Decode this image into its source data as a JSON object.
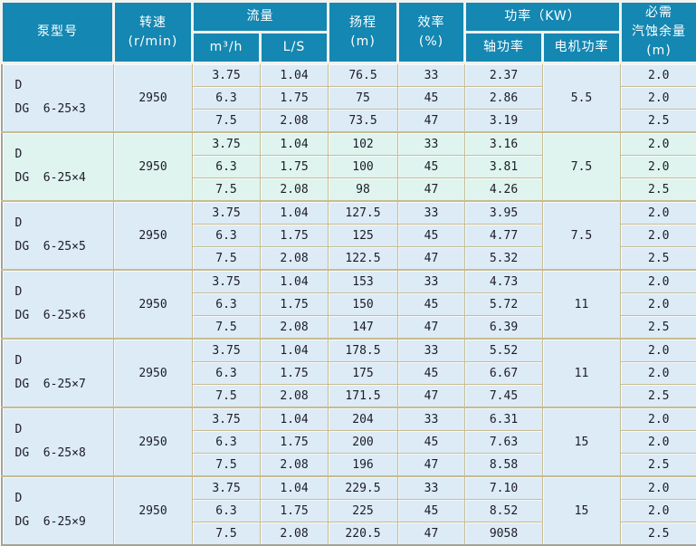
{
  "header": {
    "pump_model": "泵型号",
    "speed_l1": "转速",
    "speed_l2": "(r/min)",
    "flow": "流量",
    "flow_m3h": "m³/h",
    "flow_ls": "L/S",
    "head_l1": "扬程",
    "head_l2": "(m)",
    "eff_l1": "效率",
    "eff_l2": "(%)",
    "power": "功率（KW）",
    "power_shaft": "轴功率",
    "power_motor": "电机功率",
    "npsh_l1": "必需",
    "npsh_l2": "汽蚀余量",
    "npsh_l3": "(m)"
  },
  "colors": {
    "header_bg": "#1487b2",
    "row_bg": "#dcebf5",
    "row_bg_highlight": "#dff4ee",
    "border": "#c6bc93",
    "header_text": "#ffffff",
    "body_text": "#1c1c28"
  },
  "groups": [
    {
      "model_line1": "D",
      "model_line2": "DG  6-25×3",
      "speed": "2950",
      "motor_power": "5.5",
      "highlight": false,
      "rows": [
        {
          "m3h": "3.75",
          "ls": "1.04",
          "head": "76.5",
          "eff": "33",
          "shaft": "2.37",
          "npsh": "2.0"
        },
        {
          "m3h": "6.3",
          "ls": "1.75",
          "head": "75",
          "eff": "45",
          "shaft": "2.86",
          "npsh": "2.0"
        },
        {
          "m3h": "7.5",
          "ls": "2.08",
          "head": "73.5",
          "eff": "47",
          "shaft": "3.19",
          "npsh": "2.5"
        }
      ]
    },
    {
      "model_line1": "D",
      "model_line2": "DG  6-25×4",
      "speed": "2950",
      "motor_power": "7.5",
      "highlight": true,
      "rows": [
        {
          "m3h": "3.75",
          "ls": "1.04",
          "head": "102",
          "eff": "33",
          "shaft": "3.16",
          "npsh": "2.0"
        },
        {
          "m3h": "6.3",
          "ls": "1.75",
          "head": "100",
          "eff": "45",
          "shaft": "3.81",
          "npsh": "2.0"
        },
        {
          "m3h": "7.5",
          "ls": "2.08",
          "head": "98",
          "eff": "47",
          "shaft": "4.26",
          "npsh": "2.5"
        }
      ]
    },
    {
      "model_line1": "D",
      "model_line2": "DG  6-25×5",
      "speed": "2950",
      "motor_power": "7.5",
      "highlight": false,
      "rows": [
        {
          "m3h": "3.75",
          "ls": "1.04",
          "head": "127.5",
          "eff": "33",
          "shaft": "3.95",
          "npsh": "2.0"
        },
        {
          "m3h": "6.3",
          "ls": "1.75",
          "head": "125",
          "eff": "45",
          "shaft": "4.77",
          "npsh": "2.0"
        },
        {
          "m3h": "7.5",
          "ls": "2.08",
          "head": "122.5",
          "eff": "47",
          "shaft": "5.32",
          "npsh": "2.5"
        }
      ]
    },
    {
      "model_line1": "D",
      "model_line2": "DG  6-25×6",
      "speed": "2950",
      "motor_power": "11",
      "highlight": false,
      "rows": [
        {
          "m3h": "3.75",
          "ls": "1.04",
          "head": "153",
          "eff": "33",
          "shaft": "4.73",
          "npsh": "2.0"
        },
        {
          "m3h": "6.3",
          "ls": "1.75",
          "head": "150",
          "eff": "45",
          "shaft": "5.72",
          "npsh": "2.0"
        },
        {
          "m3h": "7.5",
          "ls": "2.08",
          "head": "147",
          "eff": "47",
          "shaft": "6.39",
          "npsh": "2.5"
        }
      ]
    },
    {
      "model_line1": "D",
      "model_line2": "DG  6-25×7",
      "speed": "2950",
      "motor_power": "11",
      "highlight": false,
      "rows": [
        {
          "m3h": "3.75",
          "ls": "1.04",
          "head": "178.5",
          "eff": "33",
          "shaft": "5.52",
          "npsh": "2.0"
        },
        {
          "m3h": "6.3",
          "ls": "1.75",
          "head": "175",
          "eff": "45",
          "shaft": "6.67",
          "npsh": "2.0"
        },
        {
          "m3h": "7.5",
          "ls": "2.08",
          "head": "171.5",
          "eff": "47",
          "shaft": "7.45",
          "npsh": "2.5"
        }
      ]
    },
    {
      "model_line1": "D",
      "model_line2": "DG  6-25×8",
      "speed": "2950",
      "motor_power": "15",
      "highlight": false,
      "rows": [
        {
          "m3h": "3.75",
          "ls": "1.04",
          "head": "204",
          "eff": "33",
          "shaft": "6.31",
          "npsh": "2.0"
        },
        {
          "m3h": "6.3",
          "ls": "1.75",
          "head": "200",
          "eff": "45",
          "shaft": "7.63",
          "npsh": "2.0"
        },
        {
          "m3h": "7.5",
          "ls": "2.08",
          "head": "196",
          "eff": "47",
          "shaft": "8.58",
          "npsh": "2.5"
        }
      ]
    },
    {
      "model_line1": "D",
      "model_line2": "DG  6-25×9",
      "speed": "2950",
      "motor_power": "15",
      "highlight": false,
      "rows": [
        {
          "m3h": "3.75",
          "ls": "1.04",
          "head": "229.5",
          "eff": "33",
          "shaft": "7.10",
          "npsh": "2.0"
        },
        {
          "m3h": "6.3",
          "ls": "1.75",
          "head": "225",
          "eff": "45",
          "shaft": "8.52",
          "npsh": "2.0"
        },
        {
          "m3h": "7.5",
          "ls": "2.08",
          "head": "220.5",
          "eff": "47",
          "shaft": "9058",
          "npsh": "2.5"
        }
      ]
    }
  ]
}
